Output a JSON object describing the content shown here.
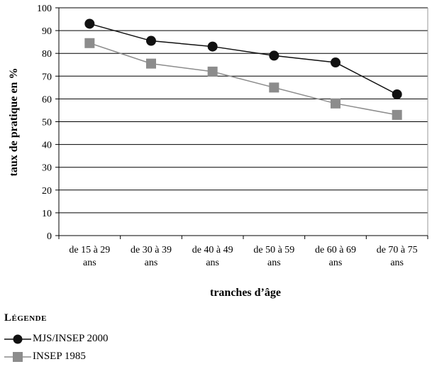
{
  "chart_data": {
    "type": "line",
    "ylabel": "taux de pratique en %",
    "xlabel": "tranches d’âge",
    "ylim": [
      0,
      100
    ],
    "yticks": [
      "0",
      "10",
      "20",
      "30",
      "40",
      "50",
      "60",
      "70",
      "80",
      "90",
      "100"
    ],
    "grid": true,
    "categories": [
      [
        "de 15 à 29",
        "ans"
      ],
      [
        "de 30 à 39",
        "ans"
      ],
      [
        "de 40 à 49",
        "ans"
      ],
      [
        "de 50 à 59",
        "ans"
      ],
      [
        "de 60 à 69",
        "ans"
      ],
      [
        "de 70 à 75",
        "ans"
      ]
    ],
    "series": [
      {
        "name": "MJS/INSEP 2000",
        "marker": "circle",
        "color": "#111111",
        "values": [
          93,
          85.5,
          83,
          79,
          76,
          62
        ]
      },
      {
        "name": "INSEP 1985",
        "marker": "square",
        "color": "#8c8c8c",
        "values": [
          84.5,
          75.5,
          72,
          65,
          58,
          53
        ]
      }
    ]
  },
  "legend": {
    "title": "Légende"
  }
}
